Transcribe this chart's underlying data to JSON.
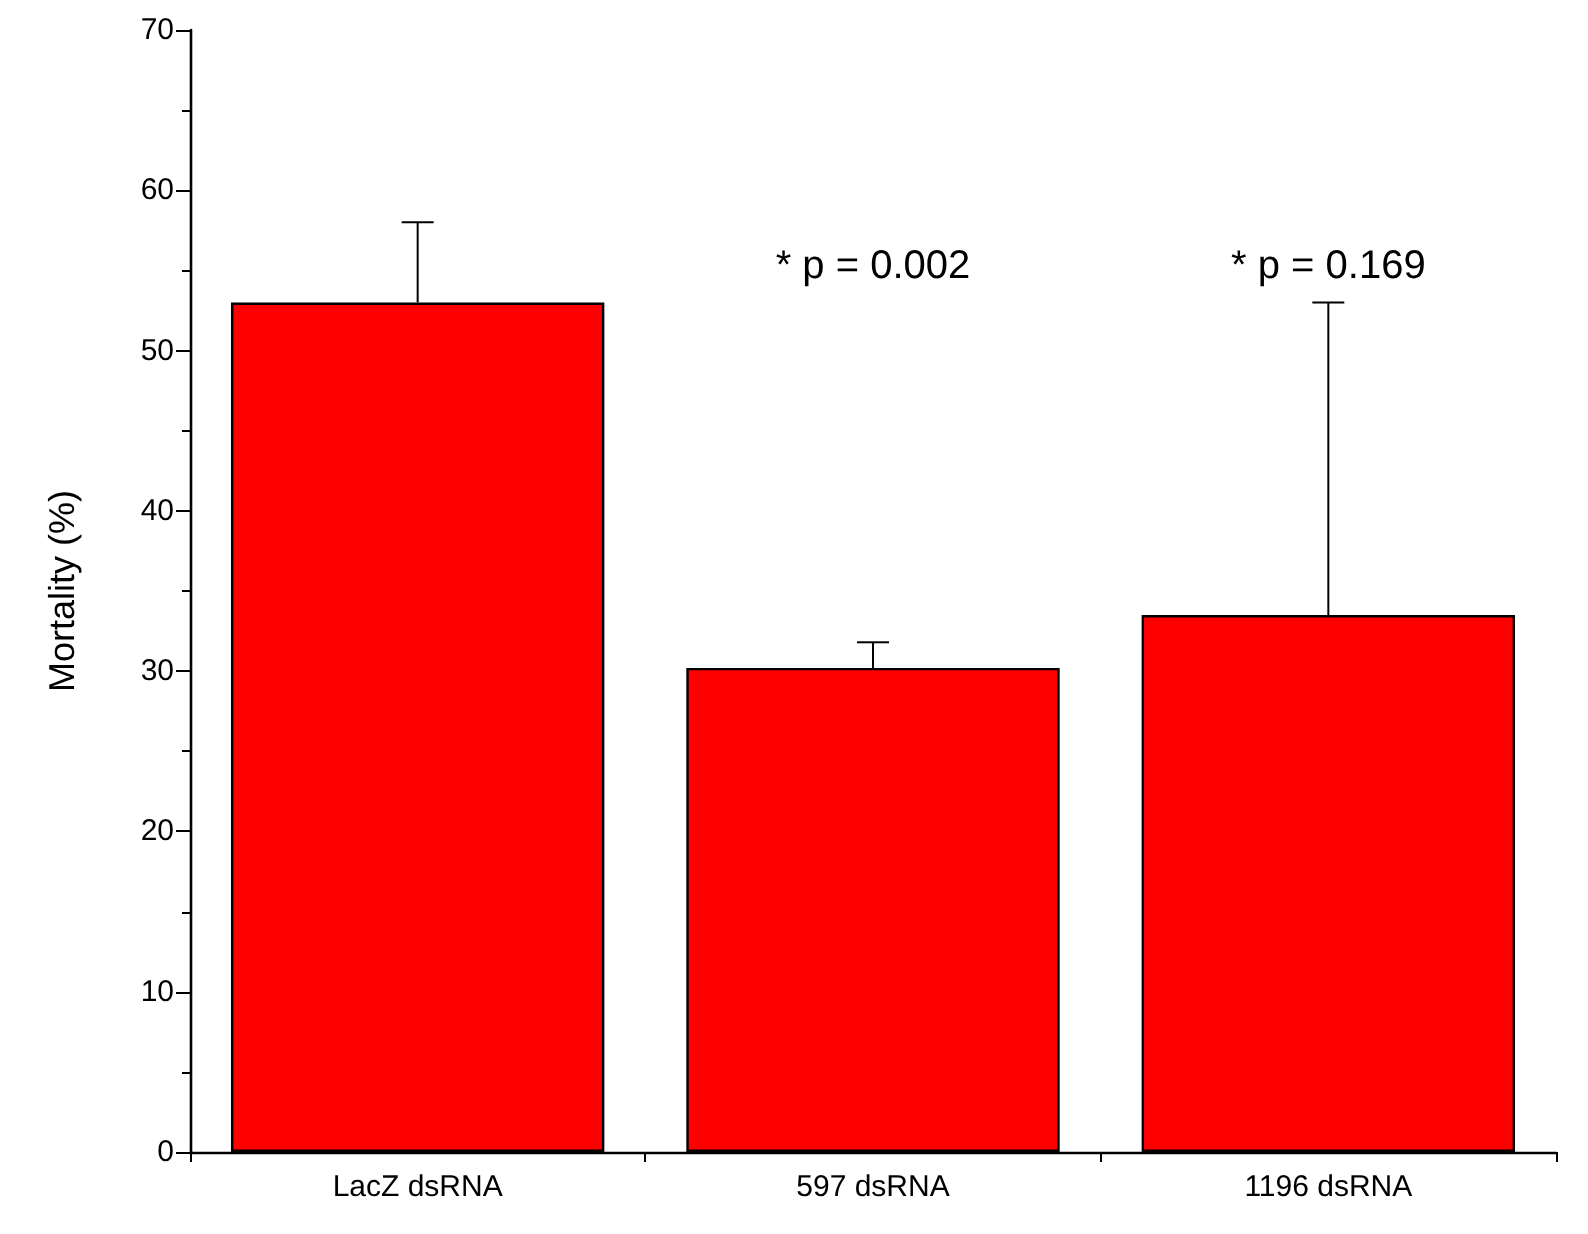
{
  "chart_data": {
    "type": "bar",
    "ylabel": "Mortality (%)",
    "categories": [
      "LacZ dsRNA",
      "597 dsRNA",
      "1196 dsRNA"
    ],
    "values": [
      53,
      30.2,
      33.5
    ],
    "color": "#ff0000",
    "errors": [
      [
        53,
        58
      ],
      [
        30.2,
        31.8
      ],
      [
        33.5,
        53
      ]
    ],
    "ylim": [
      0,
      70
    ],
    "yticks": [
      0,
      10,
      20,
      30,
      40,
      50,
      60,
      70
    ],
    "grid": false,
    "annotations": [
      "* p = 0.002",
      "* p = 0.169"
    ]
  }
}
